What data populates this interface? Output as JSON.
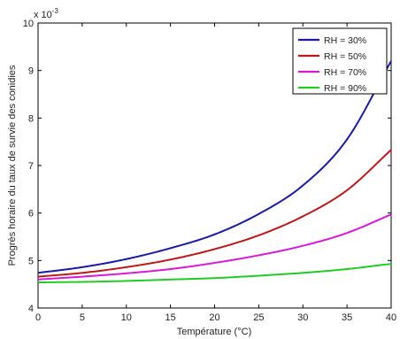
{
  "chart_data": {
    "type": "line",
    "title": "",
    "xlabel": "Température (°C)",
    "ylabel": "Progrès horaire du taux de survie des conidies",
    "y_scale_label": "x 10",
    "y_scale_exponent": "-3",
    "xlim": [
      0,
      40
    ],
    "ylim": [
      4,
      10
    ],
    "x_ticks": [
      0,
      5,
      10,
      15,
      20,
      25,
      30,
      35,
      40
    ],
    "y_ticks": [
      4,
      5,
      6,
      7,
      8,
      9,
      10
    ],
    "legend_position": "top-right",
    "grid": false,
    "x": [
      0,
      5,
      10,
      15,
      20,
      25,
      30,
      35,
      40
    ],
    "series": [
      {
        "name": "RH = 30%",
        "color": "#1a1aa6",
        "values": [
          4.74,
          4.86,
          5.03,
          5.26,
          5.55,
          5.98,
          6.58,
          7.55,
          9.2
        ]
      },
      {
        "name": "RH = 50%",
        "color": "#c01818",
        "values": [
          4.66,
          4.74,
          4.86,
          5.02,
          5.24,
          5.53,
          5.93,
          6.48,
          7.33
        ]
      },
      {
        "name": "RH = 70%",
        "color": "#d81ad8",
        "values": [
          4.6,
          4.66,
          4.73,
          4.82,
          4.95,
          5.11,
          5.31,
          5.58,
          5.97
        ]
      },
      {
        "name": "RH = 90%",
        "color": "#22cc22",
        "values": [
          4.54,
          4.55,
          4.57,
          4.6,
          4.63,
          4.68,
          4.74,
          4.82,
          4.93
        ]
      }
    ]
  }
}
